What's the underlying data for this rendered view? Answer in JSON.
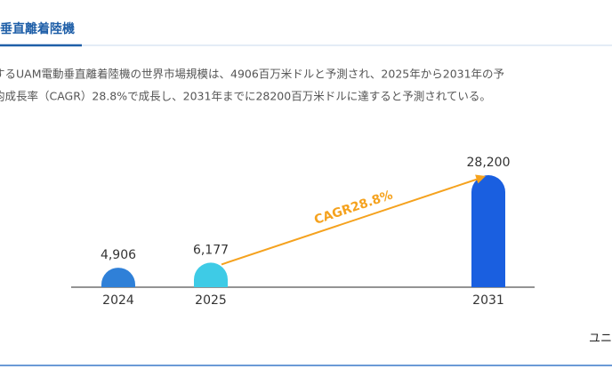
{
  "header": {
    "title": "垂直離着陸機"
  },
  "description": [
    "するUAM電動垂直離着陸機の世界市場規模は、4906百万米ドルと予測され、2025年から2031年の予",
    "均成長率（CAGR）28.8%で成長し、2031年までに28200百万米ドルに達すると予測されている。"
  ],
  "chart_data": {
    "type": "bar",
    "categories": [
      "2024",
      "2025",
      "2031"
    ],
    "values": [
      4906,
      6177,
      28200
    ],
    "value_labels": [
      "4,906",
      "6,177",
      "28,200"
    ],
    "colors": [
      "#2f80d8",
      "#3ecbe6",
      "#1a5fe0"
    ],
    "annotation": "CAGR28.8%",
    "annotation_color": "#f5a21e"
  },
  "footer": "ユニ"
}
